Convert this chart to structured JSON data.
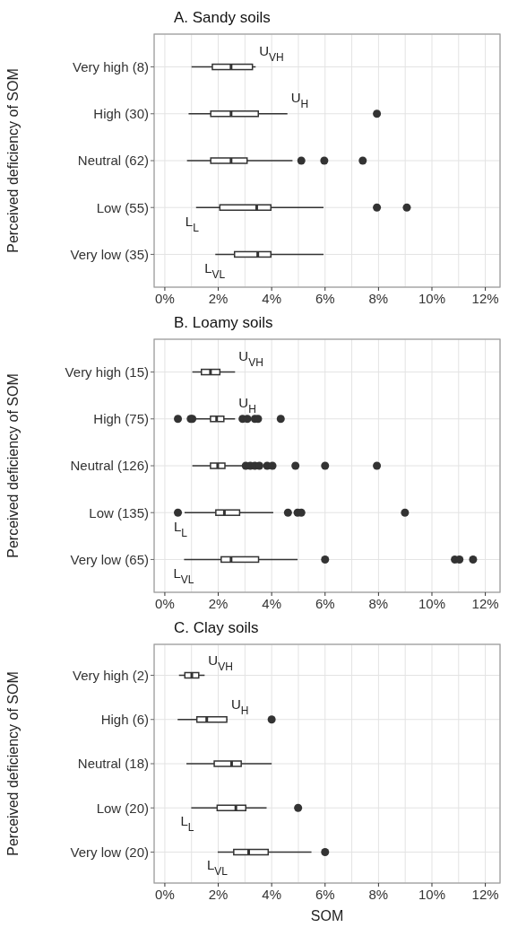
{
  "chart_data": [
    {
      "type": "box",
      "orientation": "horizontal",
      "title": "A. Sandy soils",
      "ylabel": "Perceived deficiency of SOM",
      "color": "#333333",
      "grid": true,
      "categories": [
        "Very high (8)",
        "High (30)",
        "Neutral (62)",
        "Low (55)",
        "Very low (35)"
      ],
      "boxes": [
        {
          "low": 1.0,
          "q1": 1.78,
          "median": 2.48,
          "q3": 3.28,
          "high": 3.4
        },
        {
          "low": 0.89,
          "q1": 1.72,
          "median": 2.48,
          "q3": 3.5,
          "high": 4.59,
          "outliers": [
            7.94
          ]
        },
        {
          "low": 0.83,
          "q1": 1.72,
          "median": 2.48,
          "q3": 3.08,
          "high": 4.78,
          "outliers": [
            5.11,
            5.97,
            7.41
          ]
        },
        {
          "low": 1.17,
          "q1": 2.06,
          "median": 3.44,
          "q3": 3.97,
          "high": 5.94,
          "outliers": [
            7.94,
            9.06
          ]
        },
        {
          "low": 1.89,
          "q1": 2.61,
          "median": 3.48,
          "q3": 3.97,
          "high": 5.94
        }
      ],
      "xlim": [
        -0.4,
        12.55
      ],
      "xticks": [
        {
          "value": 0,
          "label": "0%"
        },
        {
          "value": 1,
          "label": null
        },
        {
          "value": 2,
          "label": "2%"
        },
        {
          "value": 3,
          "label": null
        },
        {
          "value": 4,
          "label": "4%"
        },
        {
          "value": 5,
          "label": null
        },
        {
          "value": 6,
          "label": "6%"
        },
        {
          "value": 7,
          "label": null
        },
        {
          "value": 8,
          "label": "8%"
        },
        {
          "value": 9,
          "label": null
        },
        {
          "value": 10,
          "label": "10%"
        },
        {
          "value": 11,
          "label": null
        },
        {
          "value": 12,
          "label": "12%"
        }
      ],
      "annotations": [
        {
          "text": "U$_{VH}$",
          "x": 3.4,
          "y": "Very high (8)"
        },
        {
          "text": "U$_{H}$",
          "x": 4.59,
          "y": "High (30)"
        },
        {
          "text": "L$_{L}$",
          "x": 1.17,
          "y": "Low (55)"
        },
        {
          "text": "L$_{VL}$",
          "x": 1.89,
          "y": "Very low (35)"
        }
      ]
    },
    {
      "type": "box",
      "orientation": "horizontal",
      "title": "B. Loamy soils",
      "ylabel": "Perceived deficiency of SOM",
      "color": "#333333",
      "grid": true,
      "categories": [
        "Very high (15)",
        "High (75)",
        "Neutral (126)",
        "Low (135)",
        "Very low (65)"
      ],
      "boxes": [
        {
          "low": 1.03,
          "q1": 1.37,
          "median": 1.71,
          "q3": 2.06,
          "high": 2.63
        },
        {
          "low": 1.14,
          "q1": 1.71,
          "median": 1.94,
          "q3": 2.21,
          "high": 2.63,
          "outliers": [
            0.49,
            0.97,
            1.03,
            2.91,
            3.09,
            3.37,
            3.49,
            4.34
          ]
        },
        {
          "low": 1.03,
          "q1": 1.71,
          "median": 1.98,
          "q3": 2.25,
          "high": 2.91,
          "outliers": [
            3.03,
            3.2,
            3.37,
            3.54,
            3.83,
            4.03,
            4.89,
            6.0,
            7.94
          ]
        },
        {
          "low": 0.74,
          "q1": 1.91,
          "median": 2.23,
          "q3": 2.8,
          "high": 4.06,
          "outliers": [
            0.49,
            4.61,
            4.97,
            5.11,
            8.99
          ]
        },
        {
          "low": 0.72,
          "q1": 2.11,
          "median": 2.48,
          "q3": 3.51,
          "high": 4.97,
          "outliers": [
            6.0,
            10.86,
            11.03,
            11.54
          ]
        }
      ],
      "xlim": [
        -0.4,
        12.55
      ],
      "xticks": [
        {
          "value": 0,
          "label": "0%"
        },
        {
          "value": 1,
          "label": null
        },
        {
          "value": 2,
          "label": "2%"
        },
        {
          "value": 3,
          "label": null
        },
        {
          "value": 4,
          "label": "4%"
        },
        {
          "value": 5,
          "label": null
        },
        {
          "value": 6,
          "label": "6%"
        },
        {
          "value": 7,
          "label": null
        },
        {
          "value": 8,
          "label": "8%"
        },
        {
          "value": 9,
          "label": null
        },
        {
          "value": 10,
          "label": "10%"
        },
        {
          "value": 11,
          "label": null
        },
        {
          "value": 12,
          "label": "12%"
        }
      ],
      "annotations": [
        {
          "text": "U$_{VH}$",
          "x": 2.63,
          "y": "Very high (15)"
        },
        {
          "text": "U$_{H}$",
          "x": 2.63,
          "y": "High (75)"
        },
        {
          "text": "L$_{L}$",
          "x": 0.74,
          "y": "Low (135)"
        },
        {
          "text": "L$_{VL}$",
          "x": 0.72,
          "y": "Very low (65)"
        }
      ]
    },
    {
      "type": "box",
      "orientation": "horizontal",
      "title": "C. Clay soils",
      "ylabel": "Perceived deficiency of SOM",
      "xlabel": "SOM",
      "color": "#333333",
      "grid": true,
      "categories": [
        "Very high (2)",
        "High (6)",
        "Neutral (18)",
        "Low (20)",
        "Very low (20)"
      ],
      "boxes": [
        {
          "low": 0.53,
          "q1": 0.75,
          "median": 1.01,
          "q3": 1.27,
          "high": 1.49
        },
        {
          "low": 0.48,
          "q1": 1.2,
          "median": 1.57,
          "q3": 2.32,
          "high": 2.35,
          "outliers": [
            4.0
          ]
        },
        {
          "low": 0.81,
          "q1": 1.85,
          "median": 2.5,
          "q3": 2.86,
          "high": 4.0
        },
        {
          "low": 0.99,
          "q1": 1.96,
          "median": 2.66,
          "q3": 3.03,
          "high": 3.81,
          "outliers": [
            4.99
          ]
        },
        {
          "low": 1.98,
          "q1": 2.58,
          "median": 3.14,
          "q3": 3.87,
          "high": 5.49,
          "outliers": [
            6.0
          ]
        }
      ],
      "xlim": [
        -0.4,
        12.55
      ],
      "xticks": [
        {
          "value": 0,
          "label": "0%"
        },
        {
          "value": 1,
          "label": null
        },
        {
          "value": 2,
          "label": "2%"
        },
        {
          "value": 3,
          "label": null
        },
        {
          "value": 4,
          "label": "4%"
        },
        {
          "value": 5,
          "label": null
        },
        {
          "value": 6,
          "label": "6%"
        },
        {
          "value": 7,
          "label": null
        },
        {
          "value": 8,
          "label": "8%"
        },
        {
          "value": 9,
          "label": null
        },
        {
          "value": 10,
          "label": "10%"
        },
        {
          "value": 11,
          "label": null
        },
        {
          "value": 12,
          "label": "12%"
        }
      ],
      "annotations": [
        {
          "text": "U$_{VH}$",
          "x": 1.49,
          "y": "Very high (2)"
        },
        {
          "text": "U$_{H}$",
          "x": 2.35,
          "y": "High (6)"
        },
        {
          "text": "L$_{L}$",
          "x": 0.99,
          "y": "Low (20)"
        },
        {
          "text": "L$_{VL}$",
          "x": 1.98,
          "y": "Very low (20)"
        }
      ]
    }
  ]
}
